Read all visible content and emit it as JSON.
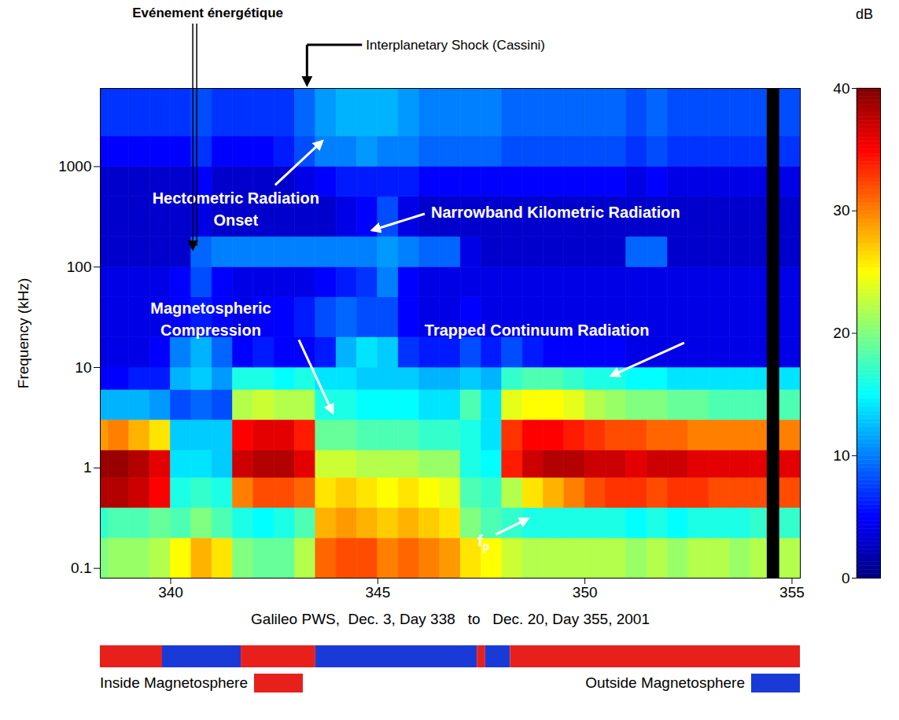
{
  "chart_data": {
    "type": "heatmap",
    "x_label": "Galileo PWS,  Dec. 3, Day 338   to   Dec. 20, Day 355, 2001",
    "y_label": "Frequency (kHz)",
    "xlim": [
      338.3,
      355.2
    ],
    "xticks": [
      340,
      345,
      350,
      355
    ],
    "ylim": [
      0.08,
      6000
    ],
    "yticks": [
      0.1,
      1,
      10,
      100,
      1000
    ],
    "log": "y",
    "x_bins": [
      338,
      338.5,
      339,
      339.5,
      340,
      340.5,
      341,
      341.5,
      342,
      342.5,
      343,
      343.5,
      344,
      344.5,
      345,
      345.5,
      346,
      346.5,
      347,
      347.5,
      348,
      348.5,
      349,
      349.5,
      350,
      350.5,
      351,
      351.5,
      352,
      352.5,
      353,
      353.5,
      354,
      354.5,
      355.2
    ],
    "y_bins": [
      0.08,
      0.2,
      0.4,
      0.8,
      1.5,
      3,
      6,
      10,
      20,
      50,
      100,
      200,
      500,
      1000,
      2000,
      6000
    ],
    "values": [
      [
        20,
        21,
        21,
        22,
        25,
        28,
        26,
        20,
        19,
        19,
        22,
        31,
        32,
        32,
        30,
        31,
        30,
        29,
        26,
        25,
        23,
        22,
        22,
        22,
        22,
        22,
        21,
        22,
        21,
        22,
        22,
        21,
        22,
        22
      ],
      [
        17,
        18,
        18,
        19,
        18,
        20,
        18,
        16,
        15,
        16,
        18,
        28,
        29,
        28,
        27,
        28,
        27,
        26,
        20,
        18,
        17,
        16,
        16,
        16,
        16,
        16,
        15,
        16,
        15,
        16,
        16,
        16,
        17,
        17
      ],
      [
        38,
        38,
        37,
        35,
        16,
        17,
        16,
        30,
        32,
        32,
        31,
        26,
        27,
        26,
        25,
        26,
        25,
        24,
        18,
        17,
        22,
        26,
        28,
        30,
        32,
        33,
        33,
        32,
        33,
        33,
        32,
        32,
        32,
        32
      ],
      [
        39,
        39,
        38,
        36,
        14,
        14,
        13,
        37,
        38,
        38,
        36,
        23,
        23,
        22,
        22,
        22,
        21,
        21,
        16,
        15,
        34,
        37,
        38,
        38,
        37,
        37,
        36,
        37,
        37,
        36,
        36,
        36,
        36,
        36
      ],
      [
        29,
        30,
        28,
        26,
        13,
        13,
        13,
        35,
        36,
        36,
        34,
        19,
        19,
        18,
        18,
        18,
        17,
        17,
        16,
        14,
        33,
        35,
        35,
        34,
        33,
        32,
        32,
        31,
        31,
        30,
        30,
        30,
        30,
        30
      ],
      [
        12,
        12,
        12,
        11,
        8,
        9,
        8,
        22,
        23,
        22,
        22,
        16,
        16,
        15,
        15,
        15,
        14,
        14,
        18,
        14,
        24,
        25,
        25,
        24,
        22,
        21,
        20,
        20,
        19,
        19,
        18,
        18,
        18,
        18
      ],
      [
        5,
        5,
        6,
        6,
        12,
        13,
        11,
        16,
        16,
        15,
        16,
        14,
        14,
        13,
        13,
        13,
        12,
        12,
        13,
        12,
        17,
        18,
        18,
        17,
        16,
        16,
        15,
        15,
        14,
        14,
        14,
        14,
        14,
        14
      ],
      [
        4,
        4,
        4,
        5,
        10,
        12,
        9,
        5,
        6,
        5,
        5,
        6,
        12,
        14,
        13,
        7,
        6,
        6,
        8,
        6,
        8,
        6,
        5,
        5,
        5,
        5,
        4,
        4,
        4,
        4,
        4,
        4,
        4,
        4
      ],
      [
        4,
        4,
        4,
        4,
        5,
        6,
        5,
        4,
        5,
        5,
        6,
        8,
        9,
        8,
        8,
        5,
        4,
        4,
        5,
        4,
        4,
        4,
        4,
        4,
        4,
        4,
        4,
        4,
        4,
        4,
        4,
        4,
        4,
        4
      ],
      [
        4,
        4,
        4,
        4,
        5,
        8,
        5,
        4,
        4,
        4,
        4,
        5,
        6,
        7,
        10,
        5,
        4,
        4,
        4,
        4,
        4,
        4,
        4,
        4,
        4,
        4,
        4,
        4,
        4,
        4,
        4,
        4,
        4,
        4
      ],
      [
        3,
        3,
        3,
        3,
        3,
        9,
        10,
        10,
        10,
        10,
        10,
        10,
        10,
        10,
        11,
        10,
        9,
        9,
        4,
        3,
        3,
        3,
        3,
        3,
        3,
        3,
        9,
        9,
        3,
        3,
        3,
        3,
        3,
        3
      ],
      [
        3,
        3,
        3,
        3,
        3,
        4,
        3,
        3,
        3,
        3,
        3,
        3,
        4,
        5,
        8,
        4,
        3,
        3,
        3,
        3,
        3,
        3,
        3,
        3,
        3,
        3,
        3,
        3,
        3,
        3,
        3,
        3,
        3,
        3
      ],
      [
        3,
        3,
        3,
        3,
        3,
        5,
        3,
        3,
        3,
        3,
        4,
        5,
        6,
        6,
        6,
        6,
        5,
        5,
        5,
        5,
        5,
        5,
        5,
        5,
        5,
        5,
        4,
        5,
        4,
        4,
        4,
        4,
        4,
        4
      ],
      [
        5,
        5,
        5,
        5,
        5,
        7,
        5,
        5,
        5,
        6,
        8,
        10,
        10,
        11,
        10,
        10,
        9,
        9,
        9,
        9,
        8,
        8,
        8,
        8,
        8,
        8,
        7,
        8,
        7,
        7,
        7,
        7,
        7,
        7
      ],
      [
        7,
        7,
        7,
        7,
        7,
        8,
        7,
        7,
        7,
        7,
        9,
        11,
        12,
        12,
        12,
        11,
        10,
        10,
        10,
        10,
        9,
        9,
        9,
        9,
        9,
        9,
        8,
        9,
        8,
        8,
        8,
        8,
        8,
        8
      ]
    ],
    "colorbar": {
      "label": "dB",
      "range": [
        0,
        40
      ],
      "ticks": [
        0,
        10,
        20,
        30,
        40
      ]
    },
    "data_gaps": [
      {
        "start": 354.4,
        "end": 354.7
      }
    ],
    "events": [
      {
        "label": "Evénement énergétique",
        "x": 340.6,
        "y": 150
      },
      {
        "label": "Interplanetary Shock (Cassini)",
        "x": 343.3
      }
    ],
    "annotations": [
      {
        "text": "Hectometric Radiation\nOnset",
        "x": 343.67,
        "y": 1780
      },
      {
        "text": "Narrowband Kilometric Radiation",
        "x": 344.87,
        "y": 230
      },
      {
        "text": "Magnetospheric\nCompression",
        "x": 343.92,
        "y": 3.5
      },
      {
        "text": "Trapped Continuum Radiation",
        "x": 350.64,
        "y": 8.2
      },
      {
        "text": "f",
        "subscript": "p",
        "x": 348.64,
        "y": 0.31
      }
    ],
    "magnetosphere": {
      "states": [
        {
          "name": "Inside Magnetosphere",
          "color": "#e8201c"
        },
        {
          "name": "Outside Magnetosphere",
          "color": "#1a3ad8"
        }
      ],
      "intervals": [
        {
          "start": 338.3,
          "end": 339.8,
          "state": "Inside Magnetosphere"
        },
        {
          "start": 339.8,
          "end": 341.7,
          "state": "Outside Magnetosphere"
        },
        {
          "start": 341.7,
          "end": 343.5,
          "state": "Inside Magnetosphere"
        },
        {
          "start": 343.5,
          "end": 347.4,
          "state": "Outside Magnetosphere"
        },
        {
          "start": 347.4,
          "end": 347.6,
          "state": "Inside Magnetosphere"
        },
        {
          "start": 347.6,
          "end": 348.2,
          "state": "Outside Magnetosphere"
        },
        {
          "start": 348.2,
          "end": 355.2,
          "state": "Inside Magnetosphere"
        }
      ]
    }
  }
}
